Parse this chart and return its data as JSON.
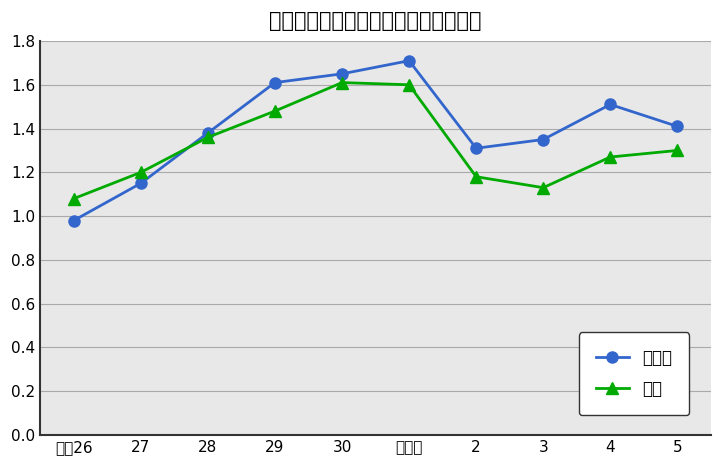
{
  "title": "有効求人倍率の推移（鳥取県・全国）",
  "x_labels": [
    "平成26",
    "27",
    "28",
    "29",
    "30",
    "令和元",
    "2",
    "3",
    "4",
    "5"
  ],
  "tottori_values": [
    0.98,
    1.15,
    1.38,
    1.61,
    1.65,
    1.71,
    1.31,
    1.35,
    1.51,
    1.41
  ],
  "zenkoku_values": [
    1.08,
    1.2,
    1.36,
    1.48,
    1.61,
    1.6,
    1.18,
    1.13,
    1.27,
    1.3
  ],
  "tottori_color": "#3366CC",
  "zenkoku_color": "#00AA00",
  "tottori_label": "鳥取県",
  "zenkoku_label": "全国",
  "ylim": [
    0.0,
    1.8
  ],
  "yticks": [
    0.0,
    0.2,
    0.4,
    0.6,
    0.8,
    1.0,
    1.2,
    1.4,
    1.6,
    1.8
  ],
  "fig_bg_color": "#FFFFFF",
  "plot_bg_color": "#E8E8E8",
  "grid_color": "#AAAAAA",
  "spine_color": "#333333",
  "title_fontsize": 15,
  "tick_fontsize": 11,
  "legend_fontsize": 12
}
